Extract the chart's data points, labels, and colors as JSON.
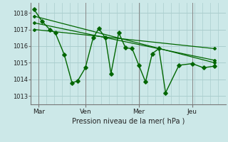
{
  "background_color": "#cce8e8",
  "grid_color": "#aacece",
  "line_color": "#006600",
  "title": "Pression niveau de la mer( hPa )",
  "ylabel_ticks": [
    1013,
    1014,
    1015,
    1016,
    1017,
    1018
  ],
  "ylim": [
    1012.5,
    1018.6
  ],
  "x_tick_positions": [
    7,
    49,
    97,
    145
  ],
  "x_tick_labels": [
    "Mar",
    "Ven",
    "Mer",
    "Jeu"
  ],
  "xlim": [
    0,
    175
  ],
  "series1_x": [
    3,
    10,
    17,
    22,
    30,
    37,
    42,
    49,
    56,
    61,
    67,
    72,
    79,
    85,
    91,
    97,
    103,
    109,
    115,
    121,
    133,
    145,
    155,
    165
  ],
  "series1_y": [
    1018.2,
    1017.5,
    1017.0,
    1016.8,
    1015.5,
    1013.8,
    1013.9,
    1014.7,
    1016.5,
    1017.05,
    1016.5,
    1014.35,
    1016.8,
    1015.9,
    1015.85,
    1014.85,
    1013.85,
    1015.55,
    1015.85,
    1013.2,
    1014.85,
    1014.95,
    1014.7,
    1014.8
  ],
  "trend1_x": [
    3,
    165
  ],
  "trend1_y": [
    1017.8,
    1015.0
  ],
  "trend2_x": [
    3,
    165
  ],
  "trend2_y": [
    1017.4,
    1015.15
  ],
  "trend3_x": [
    3,
    165
  ],
  "trend3_y": [
    1017.0,
    1015.85
  ],
  "vline_positions": [
    7,
    49,
    97,
    145
  ],
  "minor_vlines": [
    0,
    14,
    21,
    28,
    35,
    42,
    49,
    56,
    63,
    70,
    77,
    84,
    91,
    98,
    105,
    112,
    119,
    126,
    133,
    140,
    147,
    154,
    161,
    168,
    175
  ]
}
